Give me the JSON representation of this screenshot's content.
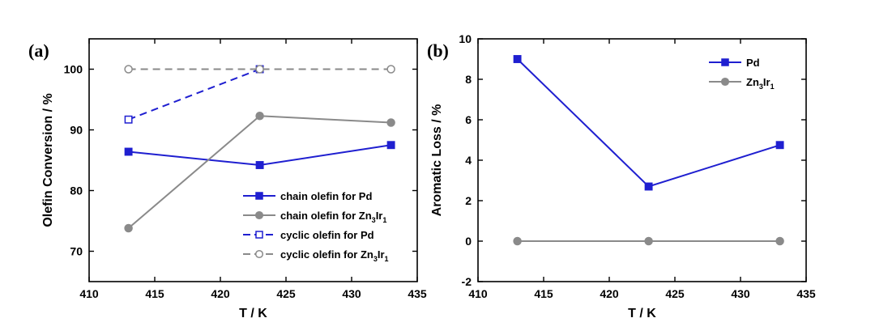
{
  "chart_data": [
    {
      "type": "line",
      "panel_label": "(a)",
      "xlabel": "T / K",
      "ylabel": "Olefin Conversion / %",
      "xlim": [
        410,
        435
      ],
      "ylim": [
        65,
        105
      ],
      "xticks": [
        410,
        415,
        420,
        425,
        430,
        435
      ],
      "yticks": [
        70,
        80,
        90,
        100
      ],
      "legend_position": "lower-right",
      "series": [
        {
          "name": "chain olefin for Pd",
          "name_parts": [
            [
              "chain olefin for Pd",
              false
            ]
          ],
          "color": "#1f1fd0",
          "dash": "solid",
          "marker": "square",
          "marker_fill": "filled",
          "x": [
            413,
            423,
            433
          ],
          "values": [
            86.4,
            84.2,
            87.5
          ]
        },
        {
          "name": "chain olefin for Zn3Ir1",
          "name_parts": [
            [
              "chain olefin for Zn",
              false
            ],
            [
              "3",
              true
            ],
            [
              "Ir",
              false
            ],
            [
              "1",
              true
            ]
          ],
          "color": "#8a8a8a",
          "dash": "solid",
          "marker": "circle",
          "marker_fill": "filled",
          "x": [
            413,
            423,
            433
          ],
          "values": [
            73.8,
            92.3,
            91.2
          ]
        },
        {
          "name": "cyclic olefin for Pd",
          "name_parts": [
            [
              "cyclic olefin for Pd",
              false
            ]
          ],
          "color": "#1f1fd0",
          "dash": "dashed",
          "marker": "square",
          "marker_fill": "open",
          "x": [
            413,
            423
          ],
          "values": [
            91.7,
            100.0
          ]
        },
        {
          "name": "cyclic olefin for Zn3Ir1",
          "name_parts": [
            [
              "cyclic olefin for Zn",
              false
            ],
            [
              "3",
              true
            ],
            [
              "Ir",
              false
            ],
            [
              "1",
              true
            ]
          ],
          "color": "#8a8a8a",
          "dash": "dashed",
          "marker": "circle",
          "marker_fill": "open",
          "x": [
            413,
            423,
            433
          ],
          "values": [
            100.0,
            100.0,
            100.0
          ]
        }
      ]
    },
    {
      "type": "line",
      "panel_label": "(b)",
      "xlabel": "T / K",
      "ylabel": "Aromatic Loss / %",
      "xlim": [
        410,
        435
      ],
      "ylim": [
        -2,
        10
      ],
      "xticks": [
        410,
        415,
        420,
        425,
        430,
        435
      ],
      "yticks": [
        -2,
        0,
        2,
        4,
        6,
        8,
        10
      ],
      "legend_position": "top-right",
      "series": [
        {
          "name": "Pd",
          "name_parts": [
            [
              "Pd",
              false
            ]
          ],
          "color": "#1f1fd0",
          "dash": "solid",
          "marker": "square",
          "marker_fill": "filled",
          "x": [
            413,
            423,
            433
          ],
          "values": [
            9.0,
            2.7,
            4.75
          ]
        },
        {
          "name": "Zn3Ir1",
          "name_parts": [
            [
              "Zn",
              false
            ],
            [
              "3",
              true
            ],
            [
              "Ir",
              false
            ],
            [
              "1",
              true
            ]
          ],
          "color": "#8a8a8a",
          "dash": "solid",
          "marker": "circle",
          "marker_fill": "filled",
          "x": [
            413,
            423,
            433
          ],
          "values": [
            0,
            0,
            0
          ]
        }
      ]
    }
  ]
}
